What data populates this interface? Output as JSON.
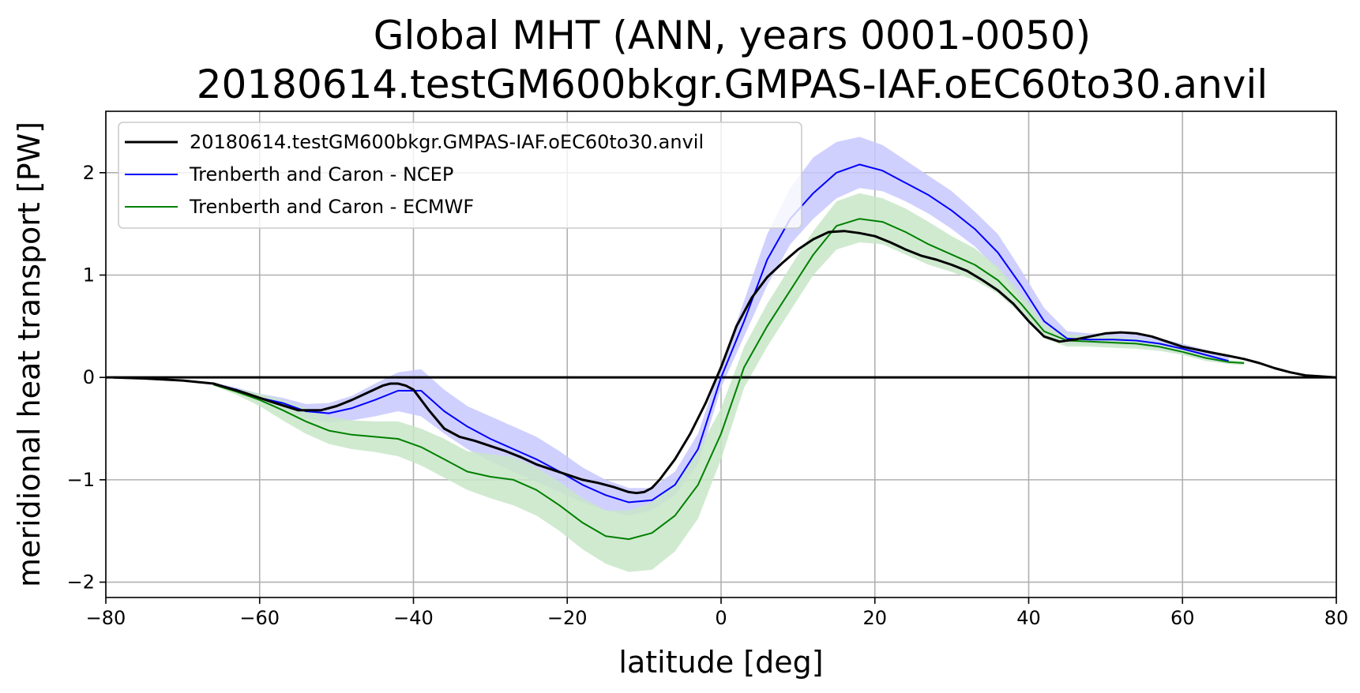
{
  "chart_data": {
    "type": "line",
    "title": [
      "Global MHT (ANN, years 0001-0050)",
      "20180614.testGM600bkgr.GMPAS-IAF.oEC60to30.anvil"
    ],
    "xlabel": "latitude [deg]",
    "ylabel": "meridional heat transport [PW]",
    "xlim": [
      -80,
      80
    ],
    "ylim": [
      -2.15,
      2.6
    ],
    "xticks": [
      -80,
      -60,
      -40,
      -20,
      0,
      20,
      40,
      60,
      80
    ],
    "xtick_labels": [
      "−80",
      "−60",
      "−40",
      "−20",
      "0",
      "20",
      "40",
      "60",
      "80"
    ],
    "yticks": [
      -2,
      -1,
      0,
      1,
      2
    ],
    "ytick_labels": [
      "−2",
      "−1",
      "0",
      "1",
      "2"
    ],
    "grid": true,
    "legend_position": "top-left",
    "series": [
      {
        "name": "20180614.testGM600bkgr.GMPAS-IAF.oEC60to30.anvil",
        "color": "#000000",
        "x": [
          -79,
          -75,
          -70,
          -66,
          -62,
          -58,
          -55,
          -52,
          -50,
          -48,
          -46,
          -44,
          -43,
          -42,
          -41,
          -40,
          -38,
          -36,
          -34,
          -32,
          -30,
          -28,
          -26,
          -24,
          -22,
          -20,
          -18,
          -16,
          -14,
          -12,
          -11,
          -10,
          -9,
          -8,
          -6,
          -4,
          -2,
          0,
          2,
          4,
          6,
          8,
          10,
          12,
          14,
          16,
          18,
          20,
          22,
          24,
          26,
          28,
          30,
          32,
          34,
          36,
          38,
          40,
          42,
          44,
          46,
          48,
          50,
          52,
          54,
          56,
          58,
          60,
          62,
          64,
          66,
          68,
          70,
          72,
          74,
          76,
          78,
          80
        ],
        "y": [
          0.0,
          -0.01,
          -0.03,
          -0.06,
          -0.15,
          -0.25,
          -0.32,
          -0.32,
          -0.28,
          -0.22,
          -0.15,
          -0.08,
          -0.06,
          -0.06,
          -0.08,
          -0.12,
          -0.32,
          -0.5,
          -0.58,
          -0.62,
          -0.67,
          -0.72,
          -0.78,
          -0.85,
          -0.9,
          -0.95,
          -1.0,
          -1.03,
          -1.07,
          -1.12,
          -1.13,
          -1.12,
          -1.08,
          -1.0,
          -0.8,
          -0.55,
          -0.25,
          0.1,
          0.5,
          0.78,
          0.98,
          1.12,
          1.25,
          1.35,
          1.42,
          1.43,
          1.41,
          1.38,
          1.32,
          1.25,
          1.19,
          1.15,
          1.1,
          1.04,
          0.95,
          0.85,
          0.72,
          0.55,
          0.4,
          0.35,
          0.37,
          0.4,
          0.43,
          0.44,
          0.43,
          0.4,
          0.35,
          0.3,
          0.27,
          0.24,
          0.21,
          0.18,
          0.14,
          0.09,
          0.05,
          0.02,
          0.01,
          0.0
        ]
      },
      {
        "name": "Trenberth and Caron - NCEP",
        "color": "#0000ff",
        "band_color": "#c8c8ff",
        "x": [
          -66,
          -63,
          -60,
          -57,
          -54,
          -51,
          -48,
          -45,
          -42,
          -39,
          -36,
          -33,
          -30,
          -27,
          -24,
          -21,
          -18,
          -15,
          -12,
          -9,
          -6,
          -3,
          0,
          3,
          6,
          9,
          12,
          15,
          18,
          21,
          24,
          27,
          30,
          33,
          36,
          39,
          42,
          45,
          48,
          51,
          54,
          57,
          60,
          63,
          66
        ],
        "y": [
          -0.06,
          -0.12,
          -0.2,
          -0.25,
          -0.33,
          -0.35,
          -0.3,
          -0.22,
          -0.13,
          -0.13,
          -0.33,
          -0.48,
          -0.6,
          -0.7,
          -0.8,
          -0.92,
          -1.05,
          -1.15,
          -1.22,
          -1.2,
          -1.05,
          -0.7,
          0.0,
          0.55,
          1.15,
          1.55,
          1.8,
          2.0,
          2.08,
          2.02,
          1.9,
          1.78,
          1.63,
          1.45,
          1.22,
          0.9,
          0.55,
          0.38,
          0.37,
          0.37,
          0.36,
          0.33,
          0.28,
          0.22,
          0.16
        ],
        "band_lower": [
          -0.07,
          -0.14,
          -0.24,
          -0.3,
          -0.4,
          -0.44,
          -0.42,
          -0.38,
          -0.33,
          -0.38,
          -0.55,
          -0.7,
          -0.82,
          -0.92,
          -1.02,
          -1.12,
          -1.22,
          -1.3,
          -1.35,
          -1.3,
          -1.15,
          -0.85,
          -0.1,
          0.4,
          0.9,
          1.3,
          1.55,
          1.75,
          1.85,
          1.82,
          1.72,
          1.6,
          1.45,
          1.28,
          1.05,
          0.75,
          0.45,
          0.32,
          0.32,
          0.32,
          0.31,
          0.28,
          0.23,
          0.18,
          0.13
        ],
        "band_upper": [
          -0.05,
          -0.1,
          -0.16,
          -0.2,
          -0.26,
          -0.25,
          -0.18,
          -0.06,
          0.05,
          0.08,
          -0.12,
          -0.28,
          -0.38,
          -0.48,
          -0.58,
          -0.72,
          -0.88,
          -1.0,
          -1.08,
          -1.08,
          -0.92,
          -0.55,
          0.12,
          0.75,
          1.4,
          1.85,
          2.15,
          2.3,
          2.35,
          2.27,
          2.12,
          1.97,
          1.82,
          1.62,
          1.4,
          1.05,
          0.68,
          0.45,
          0.43,
          0.43,
          0.42,
          0.38,
          0.33,
          0.27,
          0.2
        ]
      },
      {
        "name": "Trenberth and Caron - ECMWF",
        "color": "#008000",
        "band_color": "#c8e6c8",
        "x": [
          -66,
          -63,
          -60,
          -57,
          -54,
          -51,
          -48,
          -45,
          -42,
          -39,
          -36,
          -33,
          -30,
          -27,
          -24,
          -21,
          -18,
          -15,
          -12,
          -9,
          -6,
          -3,
          0,
          3,
          6,
          9,
          12,
          15,
          18,
          21,
          24,
          27,
          30,
          33,
          36,
          39,
          42,
          45,
          48,
          51,
          54,
          57,
          60,
          63,
          66,
          68
        ],
        "y": [
          -0.07,
          -0.14,
          -0.22,
          -0.32,
          -0.43,
          -0.52,
          -0.56,
          -0.58,
          -0.6,
          -0.68,
          -0.8,
          -0.92,
          -0.97,
          -1.0,
          -1.1,
          -1.25,
          -1.42,
          -1.55,
          -1.58,
          -1.52,
          -1.35,
          -1.05,
          -0.55,
          0.1,
          0.5,
          0.85,
          1.2,
          1.48,
          1.55,
          1.52,
          1.42,
          1.3,
          1.2,
          1.1,
          0.95,
          0.72,
          0.45,
          0.36,
          0.35,
          0.34,
          0.33,
          0.3,
          0.25,
          0.19,
          0.15,
          0.14
        ],
        "band_lower": [
          -0.08,
          -0.17,
          -0.28,
          -0.42,
          -0.55,
          -0.65,
          -0.7,
          -0.73,
          -0.77,
          -0.86,
          -0.98,
          -1.1,
          -1.18,
          -1.25,
          -1.35,
          -1.5,
          -1.68,
          -1.82,
          -1.9,
          -1.88,
          -1.7,
          -1.38,
          -0.8,
          -0.1,
          0.3,
          0.65,
          1.0,
          1.25,
          1.32,
          1.3,
          1.2,
          1.1,
          1.03,
          0.95,
          0.82,
          0.62,
          0.38,
          0.3,
          0.3,
          0.29,
          0.28,
          0.26,
          0.22,
          0.16,
          0.13,
          0.12
        ],
        "band_upper": [
          -0.06,
          -0.11,
          -0.16,
          -0.22,
          -0.3,
          -0.38,
          -0.42,
          -0.43,
          -0.43,
          -0.5,
          -0.6,
          -0.72,
          -0.75,
          -0.78,
          -0.88,
          -1.02,
          -1.18,
          -1.3,
          -1.3,
          -1.22,
          -1.05,
          -0.72,
          -0.3,
          0.3,
          0.72,
          1.08,
          1.43,
          1.72,
          1.8,
          1.75,
          1.65,
          1.52,
          1.38,
          1.26,
          1.08,
          0.82,
          0.52,
          0.42,
          0.41,
          0.4,
          0.38,
          0.34,
          0.28,
          0.22,
          0.17,
          0.16
        ]
      }
    ]
  }
}
